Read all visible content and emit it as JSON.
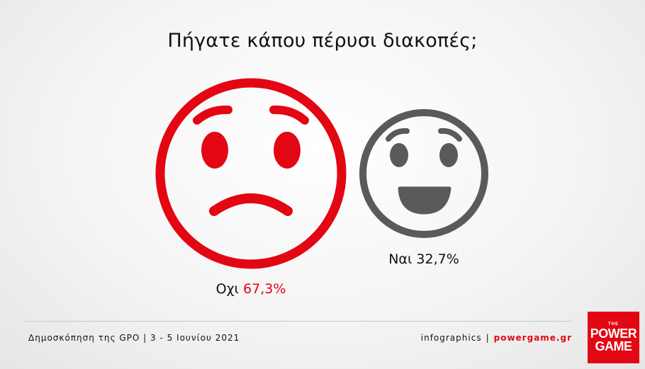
{
  "title": "Πήγατε κάπου πέρυσι διακοπές;",
  "chart_data": {
    "type": "pie",
    "title": "Πήγατε κάπου πέρυσι διακοπές;",
    "categories": [
      "Οχι",
      "Ναι"
    ],
    "values": [
      67.3,
      32.7
    ],
    "value_labels": [
      "67,3%",
      "32,7%"
    ],
    "icons": [
      "sad-face-icon",
      "happy-face-icon"
    ],
    "colors": [
      "#e30613",
      "#5a5a5a"
    ]
  },
  "footer": {
    "source": "Δημοσκόπηση της GPO | 3 - 5 Ιουνίου 2021",
    "credit": "infographics",
    "separator": "|",
    "site": "powergame.gr"
  },
  "logo": {
    "small": "THE",
    "line1": "POWER",
    "line2": "GAME"
  }
}
